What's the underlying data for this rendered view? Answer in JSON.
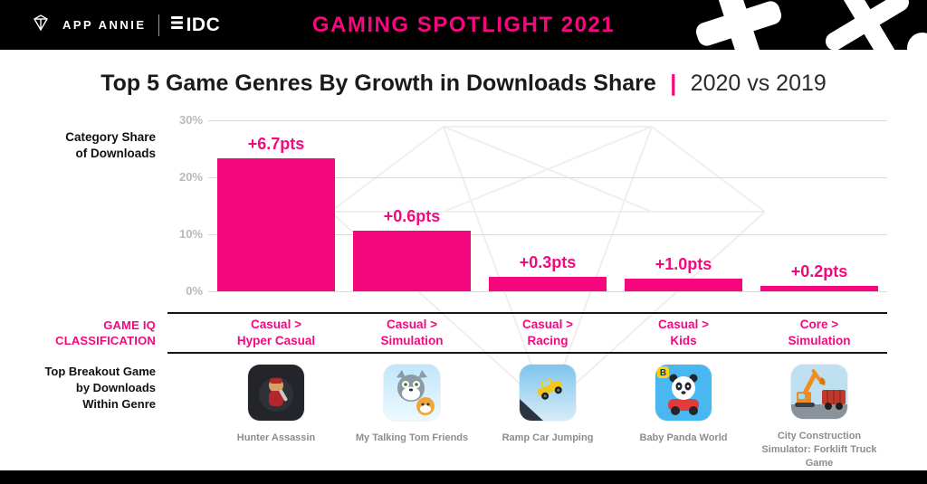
{
  "colors": {
    "accent": "#F5087E",
    "header_bg": "#000000",
    "grid": "#d9d9d9",
    "tick_text": "#b9b9b9",
    "game_name_text": "#8d8d8d"
  },
  "header": {
    "app_annie": "APP ANNIE",
    "idc": "IDC",
    "title": "GAMING SPOTLIGHT 2021"
  },
  "title": {
    "main": "Top 5 Game Genres By Growth in Downloads Share",
    "divider": "|",
    "period": "2020 vs 2019"
  },
  "side_labels": {
    "category_share": {
      "lines": [
        "Category Share",
        "of Downloads"
      ]
    },
    "game_iq": {
      "lines": [
        "GAME IQ",
        "CLASSIFICATION"
      ]
    },
    "breakout": {
      "lines": [
        "Top Breakout Game",
        "by Downloads",
        "Within Genre"
      ]
    }
  },
  "chart_data": {
    "type": "bar",
    "title": "Top 5 Game Genres By Growth in Downloads Share | 2020 vs 2019",
    "categories": [
      "Casual > Hyper Casual",
      "Casual > Simulation",
      "Casual > Racing",
      "Casual > Kids",
      "Core > Simulation"
    ],
    "values": [
      23.3,
      10.6,
      2.5,
      2.3,
      1.0
    ],
    "growth_labels": [
      "+6.7pts",
      "+0.6pts",
      "+0.3pts",
      "+1.0pts",
      "+0.2pts"
    ],
    "ylabel": "Category Share of Downloads",
    "ylim": [
      0,
      30
    ],
    "yticks": [
      "30%",
      "20%",
      "10%",
      "0%"
    ],
    "grid": "on",
    "legend": "none",
    "bar_color": "#F5087E"
  },
  "classification": {
    "items": [
      {
        "line1": "Casual >",
        "line2": "Hyper Casual"
      },
      {
        "line1": "Casual >",
        "line2": "Simulation"
      },
      {
        "line1": "Casual >",
        "line2": "Racing"
      },
      {
        "line1": "Casual >",
        "line2": "Kids"
      },
      {
        "line1": "Core >",
        "line2": "Simulation"
      }
    ]
  },
  "breakout_games": [
    {
      "name": "Hunter Assassin"
    },
    {
      "name": "My Talking Tom Friends"
    },
    {
      "name": "Ramp Car Jumping"
    },
    {
      "name": "Baby Panda World"
    },
    {
      "name": "City Construction Simulator: Forklift Truck Game"
    }
  ]
}
